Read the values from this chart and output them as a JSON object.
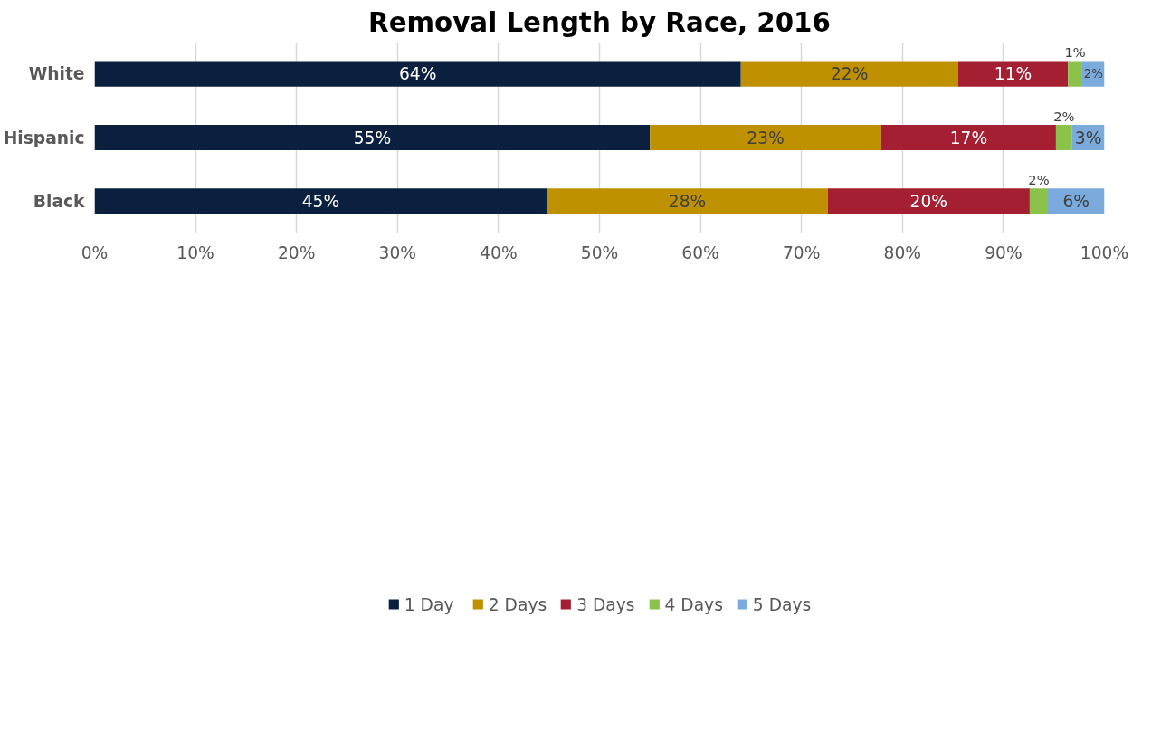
{
  "chart_data": {
    "type": "bar",
    "orientation": "horizontal",
    "stacked": true,
    "title": "Removal Length by Race, 2016",
    "categories": [
      "White",
      "Hispanic",
      "Black"
    ],
    "series": [
      {
        "name": "1 Day",
        "color": "#0b1f3f",
        "values": [
          64,
          55,
          44.8
        ],
        "value_labels": [
          "64%",
          "55%",
          "45%"
        ]
      },
      {
        "name": "2 Days",
        "color": "#bf9000",
        "values": [
          21.5,
          22.9,
          27.8
        ],
        "value_labels": [
          "22%",
          "23%",
          "28%"
        ]
      },
      {
        "name": "3 Days",
        "color": "#a51f33",
        "values": [
          10.9,
          17.3,
          20
        ],
        "value_labels": [
          "11%",
          "17%",
          "20%"
        ]
      },
      {
        "name": "4 Days",
        "color": "#8bc34a",
        "values": [
          1.4,
          1.6,
          1.8
        ],
        "value_labels": [
          "1%",
          "2%",
          "2%"
        ]
      },
      {
        "name": "5 Days",
        "color": "#7aabdc",
        "values": [
          2.2,
          3.2,
          5.6
        ],
        "value_labels": [
          "2%",
          "3%",
          "6%"
        ]
      }
    ],
    "xlim": [
      0,
      100
    ],
    "xticks": [
      {
        "value": 0,
        "label": "0%"
      },
      {
        "value": 10,
        "label": "10%"
      },
      {
        "value": 20,
        "label": "20%"
      },
      {
        "value": 30,
        "label": "30%"
      },
      {
        "value": 40,
        "label": "40%"
      },
      {
        "value": 50,
        "label": "50%"
      },
      {
        "value": 60,
        "label": "60%"
      },
      {
        "value": 70,
        "label": "70%"
      },
      {
        "value": 80,
        "label": "80%"
      },
      {
        "value": 90,
        "label": "90%"
      },
      {
        "value": 100,
        "label": "100%"
      }
    ],
    "grid": "x",
    "legend": "bottom"
  }
}
